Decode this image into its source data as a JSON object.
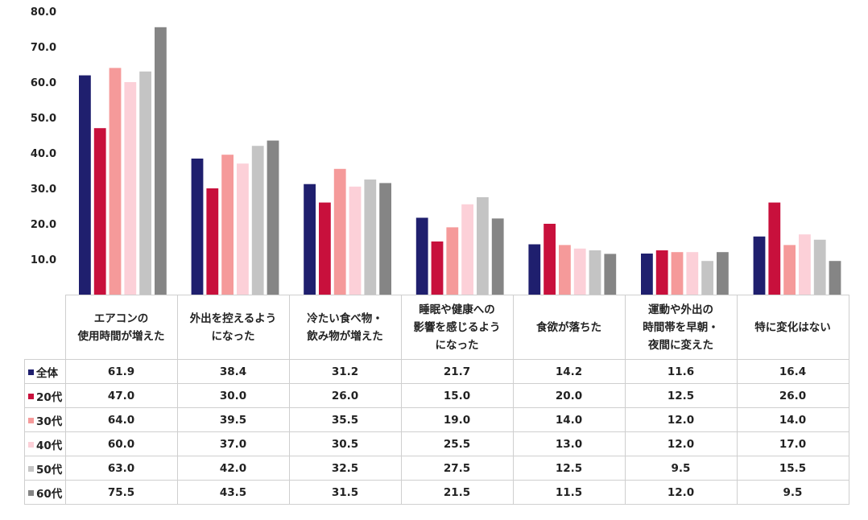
{
  "chart_data": {
    "type": "bar",
    "ylim": [
      0,
      80
    ],
    "yticks": [
      "-",
      "10.0",
      "20.0",
      "30.0",
      "40.0",
      "50.0",
      "60.0",
      "70.0",
      "80.0"
    ],
    "categories": [
      [
        "エアコンの",
        "使用時間が増えた"
      ],
      [
        "外出を控えるよう",
        "になった"
      ],
      [
        "冷たい食べ物・",
        "飲み物が増えた"
      ],
      [
        "睡眠や健康への",
        "影響を感じるよう",
        "になった"
      ],
      [
        "食欲が落ちた"
      ],
      [
        "運動や外出の",
        "時間帯を早朝・",
        "夜間に変えた"
      ],
      [
        "特に変化はない"
      ]
    ],
    "series": [
      {
        "name": "全体",
        "color": "#1f1f6e",
        "values": [
          "61.9",
          "38.4",
          "31.2",
          "21.7",
          "14.2",
          "11.6",
          "16.4"
        ]
      },
      {
        "name": "20代",
        "color": "#c8103c",
        "values": [
          "47.0",
          "30.0",
          "26.0",
          "15.0",
          "20.0",
          "12.5",
          "26.0"
        ]
      },
      {
        "name": "30代",
        "color": "#f59a9a",
        "values": [
          "64.0",
          "39.5",
          "35.5",
          "19.0",
          "14.0",
          "12.0",
          "14.0"
        ]
      },
      {
        "name": "40代",
        "color": "#fcd0d8",
        "values": [
          "60.0",
          "37.0",
          "30.5",
          "25.5",
          "13.0",
          "12.0",
          "17.0"
        ]
      },
      {
        "name": "50代",
        "color": "#c4c4c4",
        "values": [
          "63.0",
          "42.0",
          "32.5",
          "27.5",
          "12.5",
          "9.5",
          "15.5"
        ]
      },
      {
        "name": "60代",
        "color": "#858585",
        "values": [
          "75.5",
          "43.5",
          "31.5",
          "21.5",
          "11.5",
          "12.0",
          "9.5"
        ]
      }
    ]
  }
}
